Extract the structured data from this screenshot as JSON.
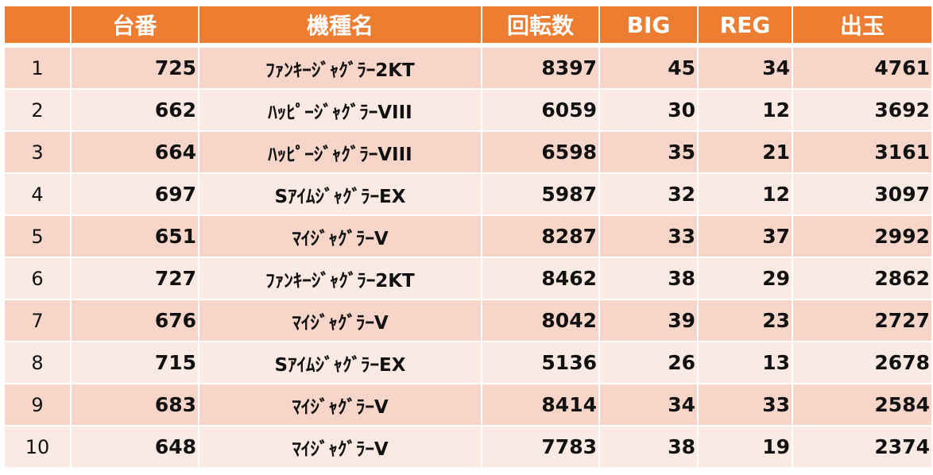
{
  "colors": {
    "header_bg": "#ed7d31",
    "header_text": "#ffffff",
    "row_odd_bg": "#f8d5c9",
    "row_even_bg": "#fbe9e4"
  },
  "table": {
    "headers": [
      "",
      "台番",
      "機種名",
      "回転数",
      "BIG",
      "REG",
      "出玉"
    ],
    "rows": [
      [
        "1",
        "725",
        "ﾌｧﾝｷｰｼﾞｬｸﾞﾗｰ2KT",
        "8397",
        "45",
        "34",
        "4761"
      ],
      [
        "2",
        "662",
        "ﾊｯﾋﾟｰｼﾞｬｸﾞﾗｰVIII",
        "6059",
        "30",
        "12",
        "3692"
      ],
      [
        "3",
        "664",
        "ﾊｯﾋﾟｰｼﾞｬｸﾞﾗｰVIII",
        "6598",
        "35",
        "21",
        "3161"
      ],
      [
        "4",
        "697",
        "SｱｲﾑｼﾞｬｸﾞﾗｰEX",
        "5987",
        "32",
        "12",
        "3097"
      ],
      [
        "5",
        "651",
        "ﾏｲｼﾞｬｸﾞﾗｰV",
        "8287",
        "33",
        "37",
        "2992"
      ],
      [
        "6",
        "727",
        "ﾌｧﾝｷｰｼﾞｬｸﾞﾗｰ2KT",
        "8462",
        "38",
        "29",
        "2862"
      ],
      [
        "7",
        "676",
        "ﾏｲｼﾞｬｸﾞﾗｰV",
        "8042",
        "39",
        "23",
        "2727"
      ],
      [
        "8",
        "715",
        "SｱｲﾑｼﾞｬｸﾞﾗｰEX",
        "5136",
        "26",
        "13",
        "2678"
      ],
      [
        "9",
        "683",
        "ﾏｲｼﾞｬｸﾞﾗｰV",
        "8414",
        "34",
        "33",
        "2584"
      ],
      [
        "10",
        "648",
        "ﾏｲｼﾞｬｸﾞﾗｰV",
        "7783",
        "38",
        "19",
        "2374"
      ]
    ]
  }
}
